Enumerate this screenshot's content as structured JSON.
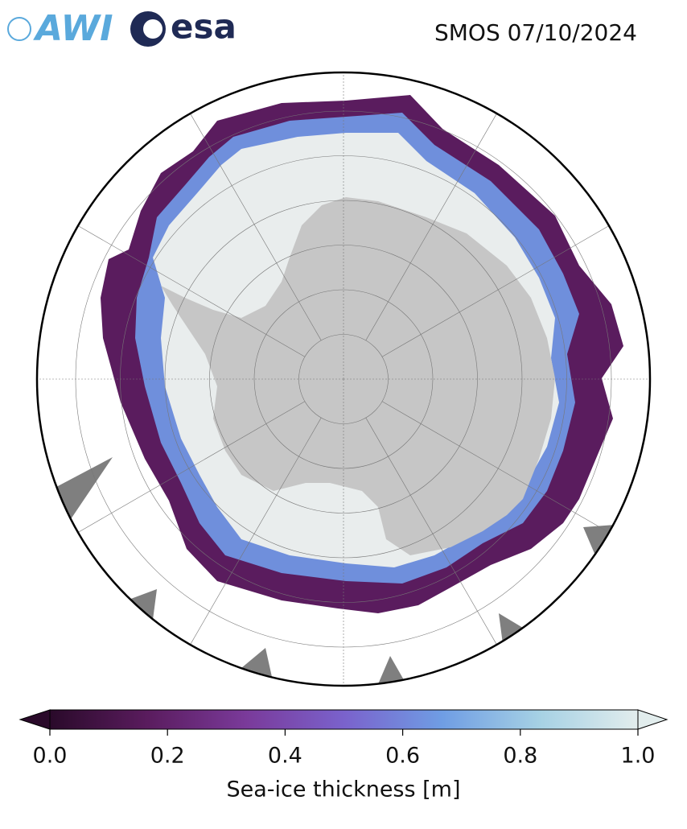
{
  "header": {
    "logos": [
      "AWI",
      "esa"
    ],
    "title": "SMOS 07/10/2024"
  },
  "colorbar": {
    "label": "Sea-ice thickness [m]",
    "range": [
      0,
      1
    ],
    "colors": [
      "#2a0a2a",
      "#5a1c5e",
      "#7a3a9a",
      "#7a62cc",
      "#6f9de4",
      "#a6d1e4",
      "#e2eded"
    ],
    "ticks": [
      {
        "value": 0,
        "label": "0.0"
      },
      {
        "value": 0.2,
        "label": "0.2"
      },
      {
        "value": 0.4,
        "label": "0.4"
      },
      {
        "value": 0.6,
        "label": "0.6"
      },
      {
        "value": 0.8,
        "label": "0.8"
      },
      {
        "value": 1,
        "label": "1.0"
      }
    ]
  }
}
